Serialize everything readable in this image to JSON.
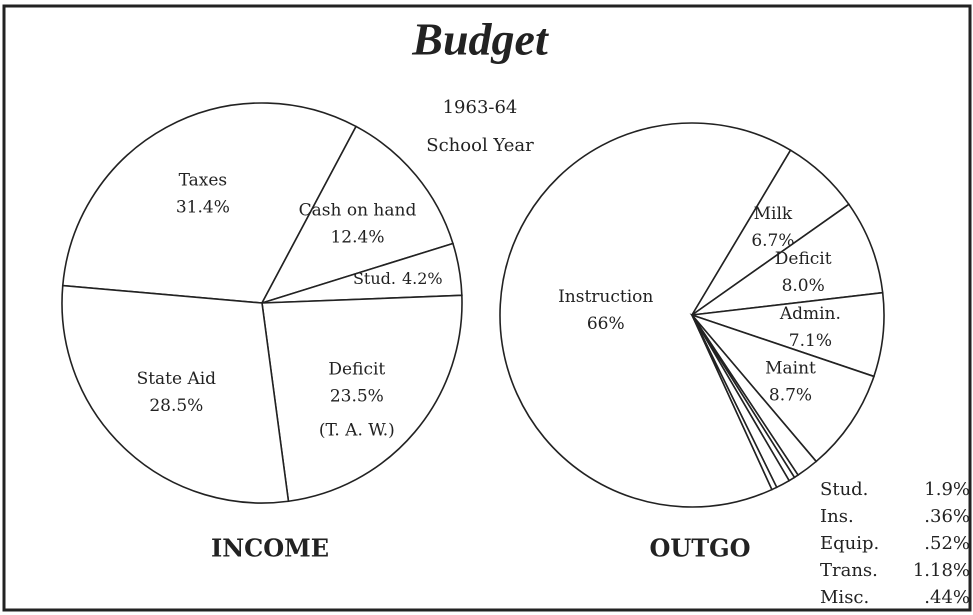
{
  "header": {
    "title": "Budget",
    "year": "1963-64",
    "term": "School Year"
  },
  "chart_data": [
    {
      "type": "pie",
      "title": "INCOME",
      "color": "#ffffff",
      "categories": [
        "Taxes",
        "Cash on hand",
        "Stud.",
        "Deficit",
        "State Aid"
      ],
      "values": [
        31.4,
        12.4,
        4.2,
        23.5,
        28.5
      ],
      "value_labels": [
        "31.4%",
        "12.4%",
        "4.2%",
        "23.5%",
        "28.5%"
      ],
      "annotation": "(T. A. W.)"
    },
    {
      "type": "pie",
      "title": "OUTGO",
      "color": "#ffffff",
      "categories": [
        "Instruction",
        "Milk",
        "Deficit",
        "Admin.",
        "Maint",
        "Stud.",
        "Ins.",
        "Equip.",
        "Trans.",
        "Misc."
      ],
      "values": [
        66,
        6.7,
        8.0,
        7.1,
        8.7,
        1.9,
        0.36,
        0.52,
        1.18,
        0.44
      ],
      "value_labels": [
        "66%",
        "6.7%",
        "8.0%",
        "7.1%",
        "8.7%",
        "1.9%",
        ".36%",
        ".52%",
        "1.18%",
        ".44%"
      ]
    }
  ]
}
